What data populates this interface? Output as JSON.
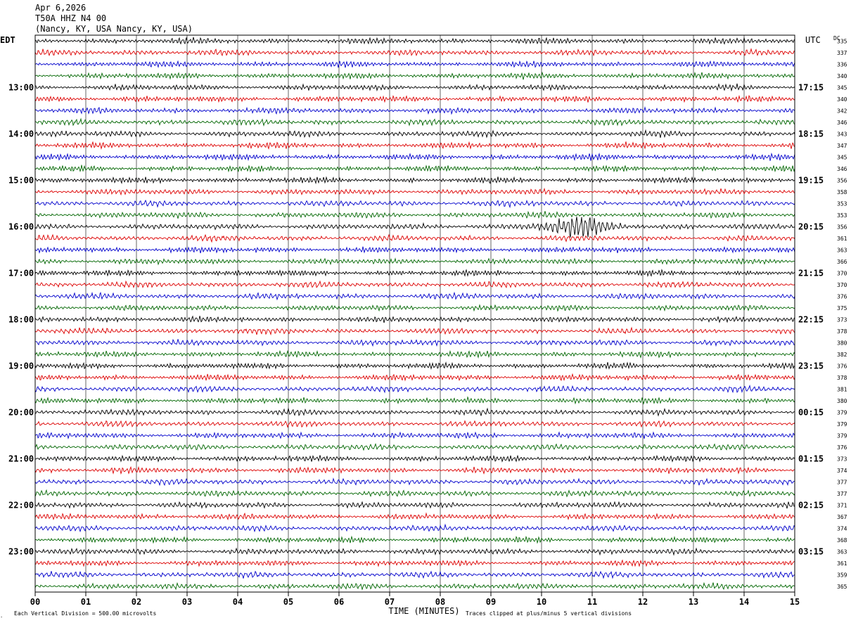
{
  "header": {
    "date": "Apr 6,2026",
    "station": "T50A HHZ N4 00",
    "location": "(Nancy, KY, USA Nancy, KY, USA)"
  },
  "chart_data": {
    "type": "line",
    "left_axis_label": "EDT",
    "right_axis_label": "UTC",
    "dc_label": "DC",
    "xlabel": "TIME (MINUTES)",
    "xlim": [
      0,
      15
    ],
    "x_ticks": [
      "00",
      "01",
      "02",
      "03",
      "04",
      "05",
      "06",
      "07",
      "08",
      "09",
      "10",
      "11",
      "12",
      "13",
      "14",
      "15"
    ],
    "trace_colors": [
      "#000000",
      "#dd0000",
      "#0000cc",
      "#006600"
    ],
    "left_hour_labels": [
      "13:00",
      "14:00",
      "15:00",
      "16:00",
      "17:00",
      "18:00",
      "19:00",
      "20:00",
      "21:00",
      "22:00",
      "23:00"
    ],
    "right_hour_labels": [
      "17:15",
      "18:15",
      "19:15",
      "20:15",
      "21:15",
      "22:15",
      "23:15",
      "00:15",
      "01:15",
      "02:15",
      "03:15"
    ],
    "dc_offsets": [
      335,
      337,
      336,
      340,
      345,
      340,
      342,
      346,
      343,
      347,
      345,
      346,
      356,
      358,
      353,
      353,
      356,
      361,
      363,
      366,
      370,
      370,
      376,
      375,
      373,
      378,
      380,
      382,
      376,
      378,
      381,
      380,
      379,
      379,
      379,
      376,
      373,
      374,
      377,
      377,
      371,
      367,
      374,
      368,
      363,
      361,
      359,
      365
    ],
    "scale_note": "Each Vertical Division =  500.00 microvolts",
    "clip_note": "Traces clipped at plus/minus 5 vertical divisions",
    "events": [
      {
        "trace_index": 16,
        "minute_start": 9.0,
        "minute_peak": 10.7,
        "minute_end": 12.6
      }
    ]
  }
}
